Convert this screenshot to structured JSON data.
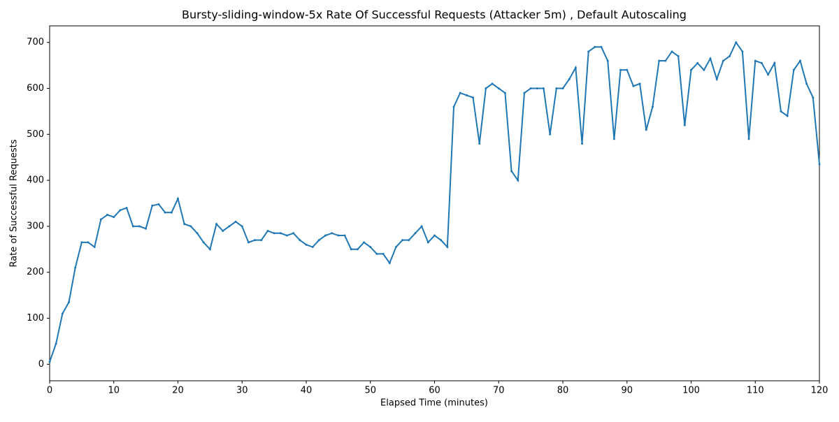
{
  "chart_data": {
    "type": "line",
    "title": "Bursty-sliding-window-5x Rate Of Successful Requests (Attacker 5m) , Default Autoscaling",
    "x_label": "Elapsed Time (minutes)",
    "y_label": "Rate of Successful Requests",
    "color": "#1f77b4",
    "x": [
      0,
      1,
      2,
      3,
      4,
      5,
      6,
      7,
      8,
      9,
      10,
      11,
      12,
      13,
      14,
      15,
      16,
      17,
      18,
      19,
      20,
      21,
      22,
      23,
      24,
      25,
      26,
      27,
      28,
      29,
      30,
      31,
      32,
      33,
      34,
      35,
      36,
      37,
      38,
      39,
      40,
      41,
      42,
      43,
      44,
      45,
      46,
      47,
      48,
      49,
      50,
      51,
      52,
      53,
      54,
      55,
      56,
      57,
      58,
      59,
      60,
      61,
      62,
      63,
      64,
      65,
      66,
      67,
      68,
      69,
      70,
      71,
      72,
      73,
      74,
      75,
      76,
      77,
      78,
      79,
      80,
      81,
      82,
      83,
      84,
      85,
      86,
      87,
      88,
      89,
      90,
      91,
      92,
      93,
      94,
      95,
      96,
      97,
      98,
      99,
      100,
      101,
      102,
      103,
      104,
      105,
      106,
      107,
      108,
      109,
      110,
      111,
      112,
      113,
      114,
      115,
      116,
      117,
      118,
      119,
      120
    ],
    "values": [
      5,
      45,
      110,
      135,
      210,
      265,
      265,
      255,
      315,
      325,
      320,
      335,
      340,
      300,
      300,
      295,
      345,
      348,
      330,
      330,
      360,
      305,
      300,
      285,
      265,
      250,
      305,
      290,
      300,
      310,
      300,
      265,
      270,
      270,
      290,
      285,
      285,
      280,
      285,
      270,
      260,
      255,
      270,
      280,
      285,
      280,
      280,
      250,
      250,
      265,
      255,
      240,
      240,
      220,
      255,
      270,
      270,
      285,
      300,
      265,
      280,
      270,
      255,
      560,
      590,
      585,
      580,
      480,
      600,
      610,
      600,
      590,
      420,
      400,
      590,
      600,
      600,
      600,
      500,
      600,
      600,
      620,
      645,
      480,
      680,
      690,
      690,
      660,
      490,
      640,
      640,
      605,
      610,
      510,
      560,
      660,
      660,
      680,
      670,
      520,
      640,
      655,
      640,
      665,
      620,
      660,
      670,
      700,
      680,
      490,
      660,
      655,
      630,
      655,
      550,
      540,
      640,
      660,
      610,
      580,
      435
    ],
    "xlim": [
      0,
      120
    ],
    "ylim": [
      -36,
      736
    ],
    "xticks": [
      0,
      10,
      20,
      30,
      40,
      50,
      60,
      70,
      80,
      90,
      100,
      110,
      120
    ],
    "yticks": [
      0,
      100,
      200,
      300,
      400,
      500,
      600,
      700
    ]
  }
}
